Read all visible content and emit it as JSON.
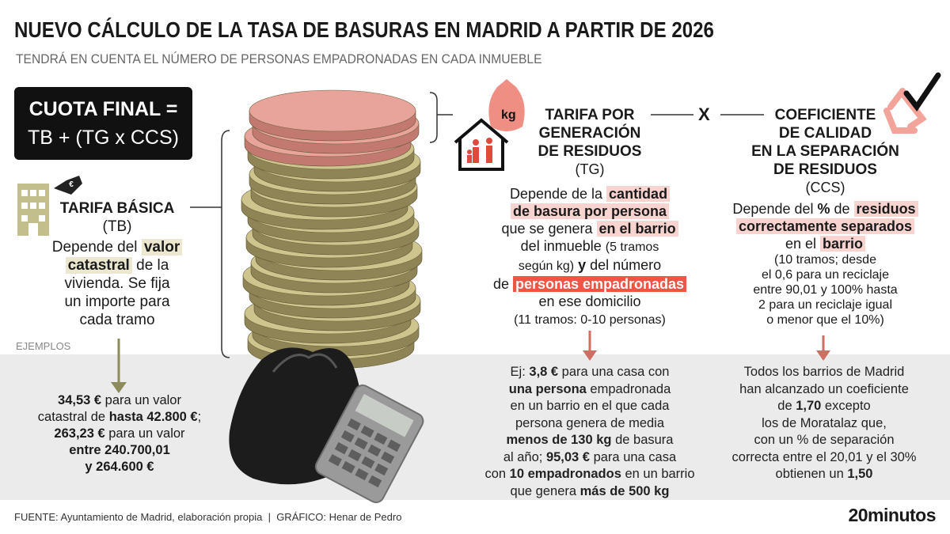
{
  "header": {
    "title": "NUEVO CÁLCULO DE LA TASA DE BASURAS EN MADRID A PARTIR DE 2026",
    "subtitle": "TENDRÁ EN CUENTA EL NÚMERO DE PERSONAS EMPADRONADAS EN CADA INMUEBLE"
  },
  "formula": [
    "CUOTA FINAL =",
    "TB + (TG x CCS)"
  ],
  "tb": {
    "title": "TARIFA BÁSICA",
    "abbr": "(TB)",
    "text": [
      "Depende del ",
      "valor",
      "catastral",
      " de la",
      "vivienda. Se fija",
      "un importe para",
      "cada tramo"
    ],
    "examples_label": "EJEMPLOS",
    "example": [
      "34,53 €",
      " para un valor",
      "catastral de ",
      "hasta 42.800 €",
      ";",
      "263,23 €",
      " para un valor",
      "entre 240.700,01",
      "y 264.600 €"
    ]
  },
  "tg": {
    "icon_label": "kg",
    "title": [
      "TARIFA POR",
      "GENERACIÓN",
      "DE RESIDUOS"
    ],
    "abbr": "(TG)",
    "text": [
      "Depende de la ",
      "cantidad",
      "de basura por persona",
      "que se genera ",
      "en el barrio",
      "del inmueble ",
      "(5 tramos",
      "según kg)",
      " y",
      " del número",
      "de ",
      "personas empadronadas",
      "en ese domicilio",
      "(11 tramos: 0-10 personas)"
    ],
    "example": [
      "Ej: ",
      "3,8 €",
      " para una casa con",
      "una persona",
      " empadronada",
      "en un barrio en el que cada",
      "persona genera de media",
      "menos de 130 kg",
      " de basura",
      "al año; ",
      "95,03 €",
      " para una casa",
      "con ",
      "10 empadronados",
      " en un barrio",
      "que genera ",
      "más de 500 kg"
    ]
  },
  "operator": "X",
  "ccs": {
    "title": [
      "COEFICIENTE",
      "DE CALIDAD",
      "EN LA SEPARACIÓN",
      "DE RESIDUOS"
    ],
    "abbr": "(CCS)",
    "text": [
      "Depende del ",
      "%",
      " de ",
      "residuos",
      "correctamente separados",
      "en el ",
      "barrio",
      "(10 tramos; desde",
      "el 0,6 para un reciclaje",
      "entre 90,01 y 100% hasta",
      "2 para un reciclaje igual",
      "o menor que el 10%)"
    ],
    "example": [
      "Todos los barrios de Madrid",
      "han alcanzado un coeficiente",
      "de ",
      "1,70",
      " excepto",
      "los de Moratalaz que,",
      "con un % de separación",
      "correcta entre el 20,01 y el 30%",
      "obtienen un ",
      "1,50"
    ]
  },
  "footer": {
    "source": "FUENTE: Ayuntamiento de Madrid, elaboración propia  |  GRÁFICO: Henar de Pedro",
    "logo": "20minutos"
  }
}
